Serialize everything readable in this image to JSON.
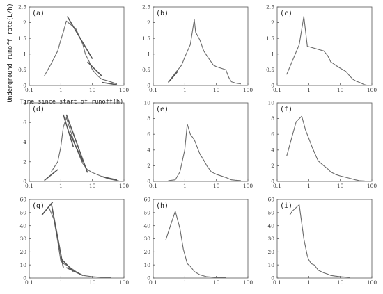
{
  "figure": {
    "ylabel": "Underground runoff rate(L/h)",
    "xlabel": "Time since start of runoff(h)"
  },
  "chart_data": [
    {
      "panel": "(a)",
      "type": "line",
      "xscale": "log",
      "xlim": [
        0.1,
        100
      ],
      "ylim": [
        0,
        2.5
      ],
      "xticks": [
        "0.1",
        "1",
        "10",
        "100"
      ],
      "yticks": [
        "0",
        "0.5",
        "1",
        "1.5",
        "2",
        "2.5"
      ],
      "x": [
        0.3,
        0.5,
        0.8,
        1.0,
        1.2,
        1.5,
        2.0,
        3.0,
        5.0,
        6.0,
        8.0,
        10.0,
        15.0,
        20.0,
        30.0,
        60.0
      ],
      "y": [
        0.3,
        0.7,
        1.1,
        1.45,
        1.7,
        2.05,
        1.95,
        1.8,
        1.3,
        1.0,
        0.75,
        0.5,
        0.3,
        0.2,
        0.15,
        0.05
      ],
      "fits": [
        {
          "x": [
            1.6,
            10.0
          ],
          "y": [
            2.2,
            0.85
          ]
        },
        {
          "x": [
            7.0,
            20.0
          ],
          "y": [
            0.75,
            0.3
          ]
        },
        {
          "x": [
            20.0,
            60.0
          ],
          "y": [
            0.1,
            0.02
          ]
        }
      ]
    },
    {
      "panel": "(b)",
      "type": "line",
      "xscale": "log",
      "xlim": [
        0.1,
        100
      ],
      "ylim": [
        0,
        2.5
      ],
      "xticks": [
        "0.1",
        "1",
        "10",
        "100"
      ],
      "yticks": [
        "0",
        "0.5",
        "1",
        "1.5",
        "2",
        "2.5"
      ],
      "x": [
        0.3,
        0.5,
        0.8,
        1.0,
        1.5,
        2.0,
        2.2,
        3.0,
        4.0,
        5.0,
        8.0,
        10.0,
        20.0,
        25.0,
        30.0,
        40.0,
        60.0
      ],
      "y": [
        0.1,
        0.4,
        0.65,
        0.9,
        1.3,
        2.1,
        1.7,
        1.45,
        1.1,
        0.95,
        0.65,
        0.6,
        0.5,
        0.25,
        0.12,
        0.08,
        0.05
      ],
      "fits": [
        {
          "x": [
            0.3,
            0.6
          ],
          "y": [
            0.1,
            0.45
          ]
        }
      ]
    },
    {
      "panel": "(c)",
      "type": "line",
      "xscale": "log",
      "xlim": [
        0.1,
        100
      ],
      "ylim": [
        0,
        2.5
      ],
      "xticks": [
        "0.1",
        "1",
        "10",
        "100"
      ],
      "yticks": [
        "0",
        "0.5",
        "1",
        "1.5",
        "2",
        "2.5"
      ],
      "x": [
        0.2,
        0.5,
        0.7,
        0.9,
        3.0,
        4.0,
        5.0,
        7.0,
        10.0,
        15.0,
        20.0,
        25.0,
        30.0,
        40.0,
        60.0,
        80.0
      ],
      "y": [
        0.35,
        1.3,
        2.2,
        1.25,
        1.1,
        0.95,
        0.75,
        0.65,
        0.55,
        0.45,
        0.3,
        0.2,
        0.15,
        0.1,
        0.02,
        0.0
      ],
      "fits": []
    },
    {
      "panel": "(d)",
      "type": "line",
      "xscale": "log",
      "xlim": [
        0.1,
        100
      ],
      "ylim": [
        0,
        8
      ],
      "xticks": [
        "0.1",
        "1",
        "10",
        "100"
      ],
      "yticks": [
        "0",
        "2",
        "4",
        "6",
        "8"
      ],
      "x": [
        0.5,
        0.8,
        1.0,
        1.2,
        1.5,
        2.0,
        3.0,
        4.0,
        5.0,
        7.0,
        10.0,
        20.0,
        30.0,
        40.0,
        70.0
      ],
      "y": [
        1.0,
        2.0,
        3.5,
        5.5,
        6.5,
        5.2,
        3.5,
        2.5,
        1.8,
        1.2,
        0.9,
        0.5,
        0.3,
        0.2,
        0.05
      ],
      "fits": [
        {
          "x": [
            0.3,
            0.8
          ],
          "y": [
            0.1,
            1.2
          ]
        },
        {
          "x": [
            1.2,
            2.5
          ],
          "y": [
            6.8,
            3.5
          ]
        },
        {
          "x": [
            1.5,
            7.0
          ],
          "y": [
            6.8,
            0.9
          ]
        },
        {
          "x": [
            2.0,
            5.0
          ],
          "y": [
            4.8,
            2.0
          ]
        },
        {
          "x": [
            20.0,
            60.0
          ],
          "y": [
            0.5,
            0.15
          ]
        }
      ]
    },
    {
      "panel": "(e)",
      "type": "line",
      "xscale": "log",
      "xlim": [
        0.1,
        100
      ],
      "ylim": [
        0,
        10
      ],
      "xticks": [
        "0.1",
        "1",
        "10",
        "100"
      ],
      "yticks": [
        "0",
        "2",
        "4",
        "6",
        "8",
        "10"
      ],
      "x": [
        0.3,
        0.5,
        0.7,
        1.0,
        1.2,
        1.5,
        2.0,
        3.0,
        4.0,
        5.0,
        7.0,
        10.0,
        20.0,
        30.0,
        40.0,
        60.0
      ],
      "y": [
        0.1,
        0.2,
        1.2,
        4.0,
        7.3,
        6.0,
        5.3,
        3.5,
        2.7,
        2.0,
        1.2,
        0.9,
        0.5,
        0.2,
        0.15,
        0.1
      ],
      "fits": []
    },
    {
      "panel": "(f)",
      "type": "line",
      "xscale": "log",
      "xlim": [
        0.1,
        100
      ],
      "ylim": [
        0,
        10
      ],
      "xticks": [
        "0.1",
        "1",
        "10",
        "100"
      ],
      "yticks": [
        "0",
        "2",
        "4",
        "6",
        "8",
        "10"
      ],
      "x": [
        0.2,
        0.4,
        0.6,
        0.8,
        1.0,
        1.3,
        1.8,
        2.0,
        3.0,
        4.0,
        5.0,
        7.0,
        10.0,
        20.0,
        30.0,
        40.0,
        60.0
      ],
      "y": [
        3.2,
        7.6,
        8.3,
        6.5,
        5.5,
        4.3,
        3.0,
        2.6,
        2.0,
        1.6,
        1.2,
        0.9,
        0.7,
        0.4,
        0.2,
        0.1,
        0.05
      ],
      "fits": []
    },
    {
      "panel": "(g)",
      "type": "line",
      "xscale": "log",
      "xlim": [
        0.1,
        100
      ],
      "ylim": [
        0,
        60
      ],
      "xticks": [
        "0.1",
        "1",
        "10",
        "100"
      ],
      "yticks": [
        "0",
        "10",
        "20",
        "30",
        "40",
        "50",
        "60"
      ],
      "x": [
        0.4,
        0.6,
        0.8,
        1.0,
        1.2,
        1.5,
        2.0,
        3.0,
        5.0,
        10.0,
        20.0,
        40.0
      ],
      "y": [
        55.0,
        45.0,
        28.0,
        13.0,
        11.0,
        10.0,
        8.0,
        5.0,
        2.0,
        1.0,
        0.5,
        0.3
      ],
      "fits": [
        {
          "x": [
            0.25,
            0.55
          ],
          "y": [
            48.0,
            58.0
          ]
        },
        {
          "x": [
            0.5,
            1.2
          ],
          "y": [
            57.0,
            8.0
          ]
        },
        {
          "x": [
            1.0,
            2.5
          ],
          "y": [
            15.0,
            5.0
          ]
        },
        {
          "x": [
            1.5,
            5.0
          ],
          "y": [
            8.0,
            2.0
          ]
        }
      ]
    },
    {
      "panel": "(h)",
      "type": "line",
      "xscale": "log",
      "xlim": [
        0.1,
        100
      ],
      "ylim": [
        0,
        60
      ],
      "xticks": [
        "0.1",
        "1",
        "10",
        "100"
      ],
      "yticks": [
        "0",
        "10",
        "20",
        "30",
        "40",
        "50",
        "60"
      ],
      "x": [
        0.25,
        0.35,
        0.5,
        0.7,
        0.9,
        1.2,
        1.5,
        2.0,
        3.0,
        5.0,
        10.0,
        20.0
      ],
      "y": [
        29.0,
        40.0,
        51.0,
        38.0,
        22.0,
        11.0,
        9.0,
        5.0,
        2.5,
        1.0,
        0.4,
        0.2
      ],
      "fits": []
    },
    {
      "panel": "(i)",
      "type": "line",
      "xscale": "log",
      "xlim": [
        0.1,
        100
      ],
      "ylim": [
        0,
        60
      ],
      "xticks": [
        "0.1",
        "1",
        "10",
        "100"
      ],
      "yticks": [
        "0",
        "10",
        "20",
        "30",
        "40",
        "50",
        "60"
      ],
      "x": [
        0.25,
        0.3,
        0.5,
        0.7,
        0.9,
        1.0,
        1.2,
        1.5,
        2.0,
        3.0,
        4.0,
        5.0,
        7.0,
        10.0,
        20.0
      ],
      "y": [
        48.0,
        51.0,
        56.0,
        30.0,
        17.0,
        14.0,
        11.0,
        10.0,
        6.0,
        4.0,
        3.0,
        2.0,
        1.5,
        1.0,
        0.5
      ],
      "fits": []
    }
  ]
}
